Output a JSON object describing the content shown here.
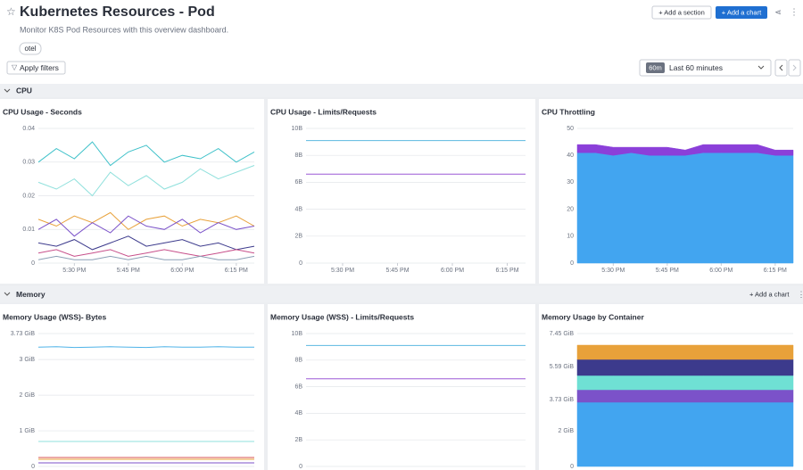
{
  "header": {
    "title": "Kubernetes Resources - Pod",
    "description": "Monitor K8S Pod Resources with this overview dashboard.",
    "tag": "otel",
    "add_section": "+ Add a section",
    "add_chart": "+ Add a chart"
  },
  "filters": {
    "apply": "Apply filters",
    "time_badge": "60m",
    "time_range": "Last 60 minutes"
  },
  "sections": [
    {
      "title": "CPU"
    },
    {
      "title": "Memory",
      "add_chart": "+ Add a chart"
    }
  ],
  "chart_data": [
    {
      "type": "line",
      "title": "CPU Usage - Seconds",
      "categories": [
        null,
        null,
        "5:30 PM",
        null,
        null,
        "5:45 PM",
        null,
        null,
        "6:00 PM",
        null,
        null,
        "6:15 PM",
        null
      ],
      "ylim": [
        0,
        0.04
      ],
      "yticks": [
        0,
        0.01,
        0.02,
        0.03,
        0.04
      ],
      "grid": true,
      "series": [
        {
          "color": "#3ec1c9",
          "values": [
            0.03,
            0.034,
            0.031,
            0.036,
            0.029,
            0.033,
            0.035,
            0.03,
            0.032,
            0.031,
            0.034,
            0.03,
            0.033
          ]
        },
        {
          "color": "#8fe0dc",
          "values": [
            0.024,
            0.022,
            0.025,
            0.02,
            0.027,
            0.023,
            0.026,
            0.022,
            0.024,
            0.028,
            0.025,
            0.027,
            0.029
          ]
        },
        {
          "color": "#e8a13a",
          "values": [
            0.013,
            0.011,
            0.014,
            0.012,
            0.015,
            0.01,
            0.013,
            0.014,
            0.011,
            0.013,
            0.012,
            0.014,
            0.011
          ]
        },
        {
          "color": "#7b52c9",
          "values": [
            0.01,
            0.013,
            0.008,
            0.012,
            0.009,
            0.014,
            0.011,
            0.01,
            0.013,
            0.009,
            0.012,
            0.01,
            0.011
          ]
        },
        {
          "color": "#3c3a8c",
          "values": [
            0.006,
            0.005,
            0.007,
            0.004,
            0.006,
            0.008,
            0.005,
            0.006,
            0.007,
            0.005,
            0.006,
            0.004,
            0.005
          ]
        },
        {
          "color": "#c74f8a",
          "values": [
            0.003,
            0.004,
            0.002,
            0.003,
            0.004,
            0.002,
            0.003,
            0.004,
            0.003,
            0.002,
            0.003,
            0.004,
            0.003
          ]
        },
        {
          "color": "#8a9fb5",
          "values": [
            0.001,
            0.002,
            0.001,
            0.001,
            0.002,
            0.001,
            0.002,
            0.001,
            0.001,
            0.002,
            0.001,
            0.001,
            0.002
          ]
        }
      ]
    },
    {
      "type": "line",
      "title": "CPU Usage - Limits/Requests",
      "categories": [
        null,
        null,
        "5:30 PM",
        null,
        null,
        "5:45 PM",
        null,
        null,
        "6:00 PM",
        null,
        null,
        "6:15 PM",
        null
      ],
      "ylim": [
        0,
        10
      ],
      "yticks": [
        0,
        {
          "value": 2,
          "label": "2B"
        },
        {
          "value": 4,
          "label": "4B"
        },
        {
          "value": 6,
          "label": "6B"
        },
        {
          "value": 8,
          "label": "8B"
        },
        {
          "value": 10,
          "label": "10B"
        }
      ],
      "grid": true,
      "series": [
        {
          "color": "#5bb8e0",
          "values": [
            9.1,
            9.1,
            9.1,
            9.1,
            9.1,
            9.1,
            9.1,
            9.1,
            9.1,
            9.1,
            9.1,
            9.1,
            9.1
          ]
        },
        {
          "color": "#9b59d6",
          "values": [
            6.6,
            6.6,
            6.6,
            6.6,
            6.6,
            6.6,
            6.6,
            6.6,
            6.6,
            6.6,
            6.6,
            6.6,
            6.6
          ]
        }
      ]
    },
    {
      "type": "area",
      "title": "CPU Throttling",
      "categories": [
        null,
        null,
        "5:30 PM",
        null,
        null,
        "5:45 PM",
        null,
        null,
        "6:00 PM",
        null,
        null,
        "6:15 PM",
        null
      ],
      "ylim": [
        0,
        50
      ],
      "yticks": [
        0,
        10,
        20,
        30,
        40,
        50
      ],
      "grid": true,
      "series": [
        {
          "color": "#42a5f0",
          "values": [
            41,
            41,
            40,
            41,
            40,
            40,
            40,
            41,
            41,
            41,
            41,
            40,
            40
          ]
        },
        {
          "color": "#8b3fd9",
          "values": [
            3,
            3,
            3,
            2,
            3,
            3,
            2,
            3,
            3,
            3,
            3,
            2,
            2
          ]
        }
      ]
    },
    {
      "type": "line",
      "title": "Memory Usage (WSS)- Bytes",
      "ylim": [
        0,
        3.73
      ],
      "yticks": [
        0,
        {
          "value": 1,
          "label": "1 GiB"
        },
        {
          "value": 2,
          "label": "2 GiB"
        },
        {
          "value": 3,
          "label": "3 GiB"
        },
        {
          "value": 3.73,
          "label": "3.73 GiB"
        }
      ],
      "grid": true,
      "series": [
        {
          "color": "#4fb3e8",
          "values": [
            3.35,
            3.36,
            3.34,
            3.35,
            3.36,
            3.35,
            3.34,
            3.36,
            3.35,
            3.35,
            3.36,
            3.35,
            3.35
          ]
        },
        {
          "color": "#8fe0dc",
          "values": [
            0.7,
            0.7,
            0.7,
            0.7,
            0.7,
            0.7,
            0.7,
            0.7,
            0.7,
            0.7,
            0.7,
            0.7,
            0.7
          ]
        },
        {
          "color": "#d9534f",
          "values": [
            0.25,
            0.25,
            0.25,
            0.25,
            0.25,
            0.25,
            0.25,
            0.25,
            0.25,
            0.25,
            0.25,
            0.25,
            0.25
          ]
        },
        {
          "color": "#e8a13a",
          "values": [
            0.2,
            0.2,
            0.2,
            0.2,
            0.2,
            0.2,
            0.2,
            0.2,
            0.2,
            0.2,
            0.2,
            0.2,
            0.2
          ]
        },
        {
          "color": "#7b52c9",
          "values": [
            0.1,
            0.1,
            0.1,
            0.1,
            0.1,
            0.1,
            0.1,
            0.1,
            0.1,
            0.1,
            0.1,
            0.1,
            0.1
          ]
        }
      ]
    },
    {
      "type": "line",
      "title": "Memory Usage (WSS) - Limits/Requests",
      "ylim": [
        0,
        10
      ],
      "yticks": [
        0,
        {
          "value": 2,
          "label": "2B"
        },
        {
          "value": 4,
          "label": "4B"
        },
        {
          "value": 6,
          "label": "6B"
        },
        {
          "value": 8,
          "label": "8B"
        },
        {
          "value": 10,
          "label": "10B"
        }
      ],
      "grid": true,
      "series": [
        {
          "color": "#5bb8e0",
          "values": [
            9.1,
            9.1,
            9.1,
            9.1,
            9.1,
            9.1,
            9.1,
            9.1,
            9.1,
            9.1,
            9.1,
            9.1,
            9.1
          ]
        },
        {
          "color": "#9b59d6",
          "values": [
            6.6,
            6.6,
            6.6,
            6.6,
            6.6,
            6.6,
            6.6,
            6.6,
            6.6,
            6.6,
            6.6,
            6.6,
            6.6
          ]
        }
      ]
    },
    {
      "type": "area",
      "title": "Memory Usage by Container",
      "ylim": [
        0,
        7.45
      ],
      "yticks": [
        0,
        {
          "value": 2,
          "label": "2 GiB"
        },
        {
          "value": 3.73,
          "label": "3.73 GiB"
        },
        {
          "value": 5.59,
          "label": "5.59 GiB"
        },
        {
          "value": 7.45,
          "label": "7.45 GiB"
        }
      ],
      "grid": true,
      "series": [
        {
          "color": "#42a5f0",
          "values": [
            3.6,
            3.6,
            3.6,
            3.6,
            3.6,
            3.6,
            3.6,
            3.6,
            3.6,
            3.6,
            3.6,
            3.6,
            3.6
          ]
        },
        {
          "color": "#7b52c9",
          "values": [
            0.7,
            0.7,
            0.7,
            0.7,
            0.7,
            0.7,
            0.7,
            0.7,
            0.7,
            0.7,
            0.7,
            0.7,
            0.7
          ]
        },
        {
          "color": "#6fe0d4",
          "values": [
            0.8,
            0.8,
            0.8,
            0.8,
            0.8,
            0.8,
            0.8,
            0.8,
            0.8,
            0.8,
            0.8,
            0.8,
            0.8
          ]
        },
        {
          "color": "#3c3a8c",
          "values": [
            0.9,
            0.9,
            0.9,
            0.9,
            0.9,
            0.9,
            0.9,
            0.9,
            0.9,
            0.9,
            0.9,
            0.9,
            0.9
          ]
        },
        {
          "color": "#e8a13a",
          "values": [
            0.8,
            0.8,
            0.8,
            0.8,
            0.8,
            0.8,
            0.8,
            0.8,
            0.8,
            0.8,
            0.8,
            0.8,
            0.8
          ]
        }
      ]
    }
  ]
}
